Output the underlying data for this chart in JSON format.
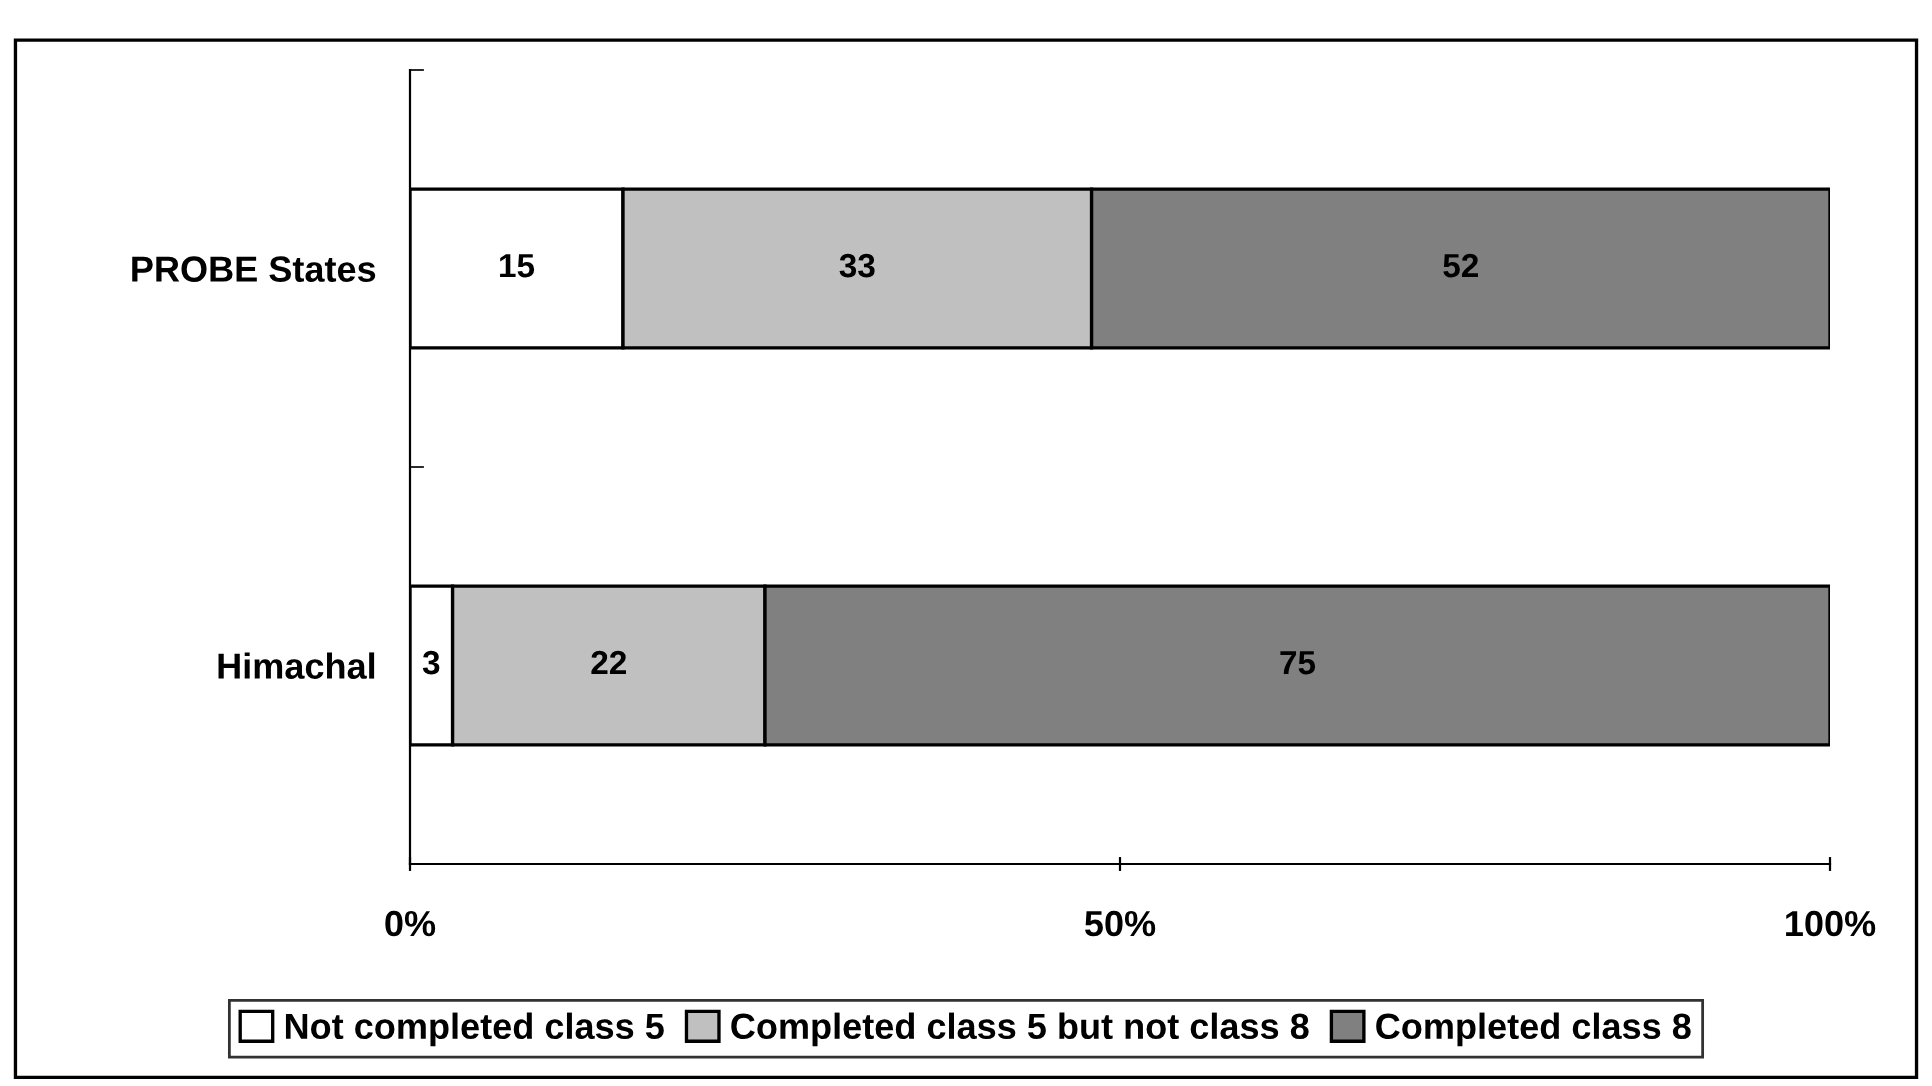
{
  "chart_data": {
    "type": "bar",
    "orientation": "horizontal",
    "stacked": true,
    "categories": [
      "PROBE States",
      "Himachal"
    ],
    "series": [
      {
        "name": "Not completed class 5",
        "color": "#ffffff",
        "values": [
          15,
          3
        ]
      },
      {
        "name": "Completed class 5 but not class 8",
        "color": "#c0c0c0",
        "values": [
          33,
          22
        ]
      },
      {
        "name": "Completed class 8",
        "color": "#808080",
        "values": [
          52,
          75
        ]
      }
    ],
    "xlim": [
      0,
      100
    ],
    "xticks": [
      {
        "value": 0,
        "label": "0%"
      },
      {
        "value": 50,
        "label": "50%"
      },
      {
        "value": 100,
        "label": "100%"
      }
    ],
    "data_labels": true,
    "grid": false,
    "legend": "bottom"
  }
}
